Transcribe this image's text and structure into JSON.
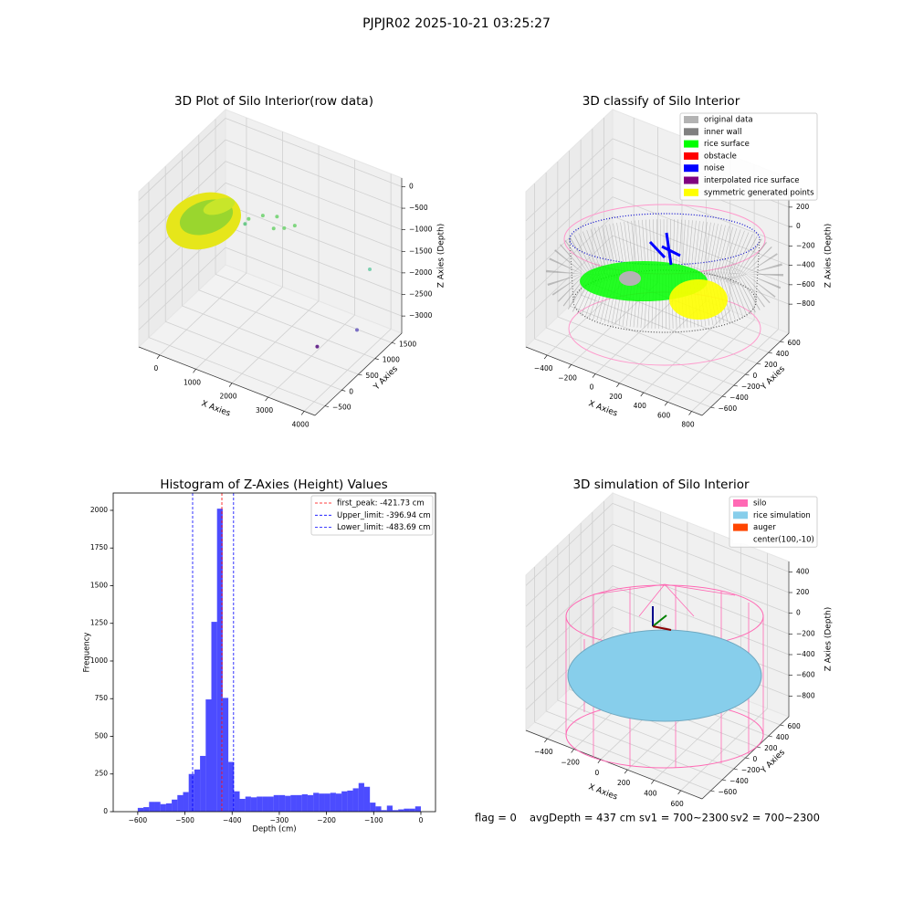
{
  "title": "PJPJR02 2025-10-21 03:25:27",
  "footer": [
    "flag = 0",
    "avgDepth = 437 cm",
    "sv1 = 700~2300",
    "sv2 = 700~2300"
  ],
  "chart_data": [
    {
      "type": "scatter3d",
      "title": "3D Plot of Silo Interior(row data)",
      "xlabel": "X Axies",
      "ylabel": "Y Axies",
      "zlabel": "Z Axies (Depth)",
      "xlim": [
        -580,
        4300
      ],
      "ylim": [
        -800,
        1800
      ],
      "zlim": [
        -3400,
        200
      ],
      "xticks": [
        0,
        1000,
        2000,
        3000,
        4000
      ],
      "yticks": [
        {
          "value": -500,
          "label": "−500"
        },
        0,
        500,
        1000,
        1500
      ],
      "zticks": [
        0,
        {
          "value": -500,
          "label": "−500"
        },
        {
          "value": -1000,
          "label": "−1000"
        },
        {
          "value": -1500,
          "label": "−1500"
        },
        {
          "value": -2000,
          "label": "−2000"
        },
        {
          "value": -2500,
          "label": "−2500"
        },
        {
          "value": -3000,
          "label": "−3000"
        }
      ],
      "series": [
        {
          "x": [
            800,
            1100,
            1400,
            1400,
            1600,
            1800,
            700,
            3600,
            3800,
            3900
          ],
          "y": [
            1000,
            1100,
            1200,
            1100,
            1200,
            1300,
            1000,
            1600,
            1000,
            -300
          ],
          "z": [
            -1300,
            -1200,
            -1200,
            -1400,
            -1400,
            -1350,
            -1450,
            -2000,
            -2900,
            -2300
          ],
          "colors": [
            "#7fd67f",
            "#7fd67f",
            "#7fd67f",
            "#7fd67f",
            "#7fd67f",
            "#7fd67f",
            "#6cc98a",
            "#7ccfb0",
            "#7b6fc4",
            "#6a2d8f"
          ]
        }
      ]
    },
    {
      "type": "scatter3d",
      "title": "3D classify of Silo Interior",
      "xlabel": "X Axies",
      "ylabel": "Y Axies",
      "zlabel": "Z Axies (Depth)",
      "xlim": [
        -576,
        887
      ],
      "ylim": [
        -750,
        750
      ],
      "zlim": [
        -1100,
        500
      ],
      "xticks": [
        {
          "value": -400,
          "label": "−400"
        },
        {
          "value": -200,
          "label": "−200"
        },
        0,
        200,
        400,
        600,
        800
      ],
      "yticks": [
        {
          "value": -600,
          "label": "−600"
        },
        {
          "value": -400,
          "label": "−400"
        },
        {
          "value": -200,
          "label": "−200"
        },
        0,
        200,
        400,
        600
      ],
      "zticks": [
        {
          "value": -800,
          "label": "−800"
        },
        {
          "value": -600,
          "label": "−600"
        },
        {
          "value": -400,
          "label": "−400"
        },
        {
          "value": -200,
          "label": "−200"
        },
        0,
        200
      ],
      "legend": [
        {
          "name": "original data",
          "color": "#b3b3b3"
        },
        {
          "name": "inner wall",
          "color": "#808080"
        },
        {
          "name": "rice surface",
          "color": "#00ff00"
        },
        {
          "name": "obstacle",
          "color": "#ff0000"
        },
        {
          "name": "noise",
          "color": "#0000ff"
        },
        {
          "name": "interpolated rice surface",
          "color": "#800080"
        },
        {
          "name": "symmetric generated points",
          "color": "#ffff00"
        }
      ]
    },
    {
      "type": "histogram",
      "title": "Histogram of Z-Axies (Height) Values",
      "xlabel": "Depth (cm)",
      "ylabel": "Frequency",
      "color": "#0000ff",
      "alpha": 0.7,
      "bins": [
        -600,
        -588,
        -576,
        -564,
        -552,
        -540,
        -528,
        -516,
        -504,
        -492,
        -480,
        -468,
        -456,
        -444,
        -432,
        -420,
        -408,
        -396,
        -384,
        -372,
        -360,
        -348,
        -336,
        -324,
        -312,
        -300,
        -288,
        -276,
        -264,
        -252,
        -240,
        -228,
        -216,
        -204,
        -192,
        -180,
        -168,
        -156,
        -144,
        -132,
        -120,
        -108,
        -96,
        -84,
        -72,
        -60,
        -48,
        -36,
        -24,
        -12,
        0
      ],
      "counts": [
        25,
        30,
        65,
        65,
        50,
        55,
        80,
        110,
        130,
        250,
        280,
        370,
        745,
        1260,
        2011,
        755,
        330,
        135,
        85,
        100,
        95,
        100,
        100,
        100,
        110,
        110,
        105,
        110,
        110,
        115,
        110,
        125,
        120,
        120,
        125,
        120,
        135,
        140,
        155,
        190,
        165,
        60,
        35,
        10,
        40,
        10,
        15,
        20,
        20,
        35
      ],
      "xlim": [
        -652,
        31
      ],
      "ylim": [
        0,
        2115
      ],
      "xticks": [
        {
          "value": -600,
          "label": "−600"
        },
        {
          "value": -500,
          "label": "−500"
        },
        {
          "value": -400,
          "label": "−400"
        },
        {
          "value": -300,
          "label": "−300"
        },
        {
          "value": -200,
          "label": "−200"
        },
        {
          "value": -100,
          "label": "−100"
        },
        0
      ],
      "yticks": [
        0,
        250,
        500,
        750,
        1000,
        1250,
        1500,
        1750,
        2000
      ],
      "vlines": [
        {
          "name": "first_peak: -421.73 cm",
          "value": -421.73,
          "color": "#ff0000"
        },
        {
          "name": "Upper_limit: -396.94 cm",
          "value": -396.94,
          "color": "#0000ff"
        },
        {
          "name": "Lower_limit: -483.69 cm",
          "value": -483.69,
          "color": "#0000ff"
        }
      ]
    },
    {
      "type": "scatter3d",
      "title": "3D simulation of Silo Interior",
      "xlabel": "X Axies",
      "ylabel": "Y Axies",
      "zlabel": "Z Axies (Depth)",
      "xlim": [
        -560,
        760
      ],
      "ylim": [
        -750,
        750
      ],
      "zlim": [
        -1000,
        500
      ],
      "xticks": [
        {
          "value": -400,
          "label": "−400"
        },
        {
          "value": -200,
          "label": "−200"
        },
        0,
        200,
        400,
        600
      ],
      "yticks": [
        {
          "value": -600,
          "label": "−600"
        },
        {
          "value": -400,
          "label": "−400"
        },
        {
          "value": -200,
          "label": "−200"
        },
        0,
        200,
        400,
        600
      ],
      "zticks": [
        {
          "value": -800,
          "label": "−800"
        },
        {
          "value": -600,
          "label": "−600"
        },
        {
          "value": -400,
          "label": "−400"
        },
        {
          "value": -200,
          "label": "−200"
        },
        0,
        200,
        400
      ],
      "legend": [
        {
          "name": "silo",
          "color": "#ff69b4"
        },
        {
          "name": "rice simulation",
          "color": "#87ceeb"
        },
        {
          "name": "auger",
          "color": "#ff4500"
        },
        {
          "name": "center(100,-10)",
          "color": "#ffffff"
        }
      ]
    }
  ]
}
